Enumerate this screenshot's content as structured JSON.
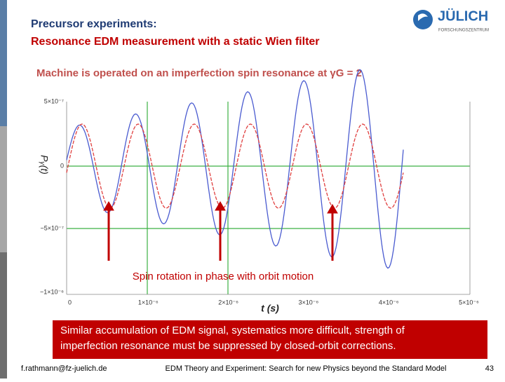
{
  "header": {
    "title_line1": "Precursor experiments:",
    "title_line2": "Resonance EDM measurement with a static Wien filter",
    "logo_text": "JÜLICH",
    "logo_sub": "FORSCHUNGSZENTRUM"
  },
  "subtitle": "Machine is operated on an imperfection spin resonance at γG = 2",
  "plot": {
    "y_label": "Pᵧ(t)",
    "x_label": "t (s)",
    "yticks": [
      "5×10⁻⁷",
      "0",
      "−5×10⁻⁷",
      "−1×10⁻⁶"
    ],
    "xticks": [
      "0",
      "1×10⁻⁶",
      "2×10⁻⁶",
      "3×10⁻⁶",
      "4×10⁻⁶",
      "5×10⁻⁶"
    ],
    "annotation": "Spin rotation in phase with orbit motion"
  },
  "note": {
    "line1": "Similar accumulation of EDM signal, systematics more difficult, strength of",
    "line2": "imperfection resonance must be suppressed by closed-orbit corrections."
  },
  "footer": {
    "email": "f.rathmann@fz-juelich.de",
    "center": "EDM Theory and Experiment: Search for new Physics beyond the Standard Model",
    "page": "43"
  }
}
